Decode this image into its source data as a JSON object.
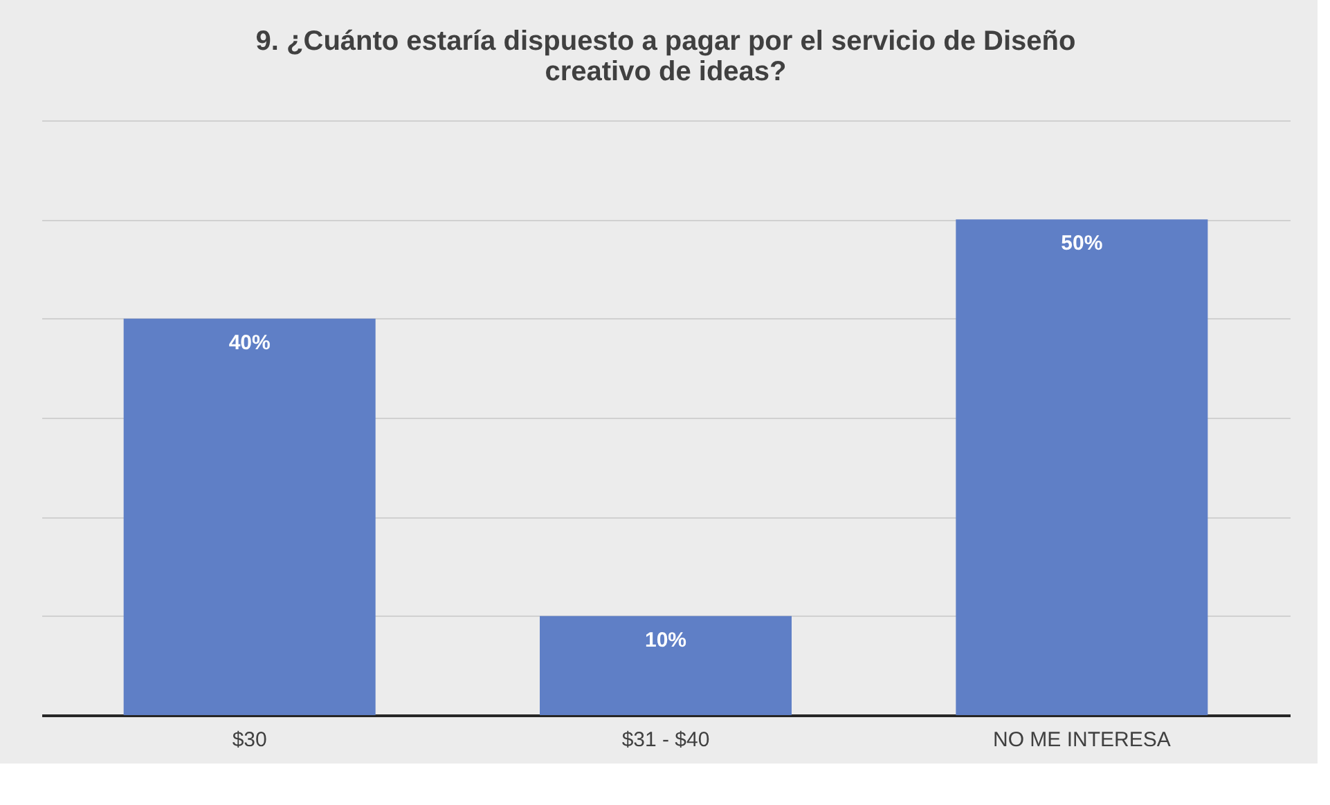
{
  "chart_data": {
    "type": "bar",
    "title": [
      "9. ¿Cuánto estaría dispuesto a pagar por el servicio de Diseño",
      "creativo de ideas?"
    ],
    "categories": [
      "$30",
      "$31 - $40",
      "NO ME INTERESA"
    ],
    "values": [
      40,
      10,
      50
    ],
    "value_labels": [
      "40%",
      "10%",
      "50%"
    ],
    "color": "#5f7fc6",
    "ylim": [
      0,
      60
    ],
    "yticks": [
      {
        "value": 0,
        "label": null
      },
      {
        "value": 10,
        "label": null
      },
      {
        "value": 20,
        "label": null
      },
      {
        "value": 30,
        "label": null
      },
      {
        "value": 40,
        "label": null
      },
      {
        "value": 50,
        "label": null
      },
      {
        "value": 60,
        "label": null
      }
    ],
    "grid": "y",
    "tick_labels": "x"
  }
}
